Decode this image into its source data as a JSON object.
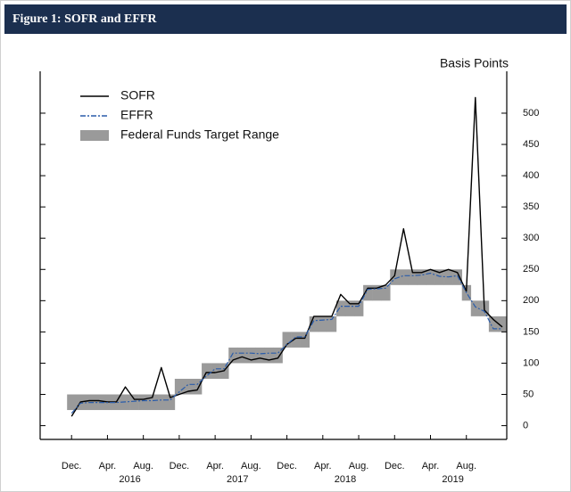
{
  "chart_data": {
    "type": "line",
    "title": "Figure 1: SOFR and EFFR",
    "y_label": "Basis Points",
    "x": [
      "2015-12",
      "2016-01",
      "2016-02",
      "2016-03",
      "2016-04",
      "2016-05",
      "2016-06",
      "2016-07",
      "2016-08",
      "2016-09",
      "2016-10",
      "2016-11",
      "2016-12",
      "2017-01",
      "2017-02",
      "2017-03",
      "2017-04",
      "2017-05",
      "2017-06",
      "2017-07",
      "2017-08",
      "2017-09",
      "2017-10",
      "2017-11",
      "2017-12",
      "2018-01",
      "2018-02",
      "2018-03",
      "2018-04",
      "2018-05",
      "2018-06",
      "2018-07",
      "2018-08",
      "2018-09",
      "2018-10",
      "2018-11",
      "2018-12",
      "2019-01",
      "2019-02",
      "2019-03",
      "2019-04",
      "2019-05",
      "2019-06",
      "2019-07",
      "2019-08",
      "2019-09",
      "2019-10",
      "2019-11",
      "2019-12"
    ],
    "series": [
      {
        "name": "SOFR",
        "color": "#000000",
        "values": [
          15,
          38,
          40,
          40,
          38,
          38,
          62,
          42,
          42,
          45,
          93,
          45,
          50,
          55,
          57,
          85,
          85,
          88,
          105,
          110,
          105,
          108,
          105,
          108,
          130,
          140,
          140,
          175,
          175,
          175,
          210,
          195,
          195,
          220,
          220,
          225,
          240,
          315,
          245,
          245,
          250,
          245,
          250,
          245,
          215,
          525,
          185,
          170,
          158
        ]
      },
      {
        "name": "EFFR",
        "color": "#2a5caa",
        "values": [
          20,
          36,
          37,
          37,
          37,
          37,
          38,
          39,
          40,
          40,
          41,
          41,
          54,
          66,
          66,
          79,
          91,
          91,
          116,
          116,
          116,
          115,
          116,
          116,
          130,
          142,
          142,
          168,
          169,
          170,
          191,
          191,
          191,
          218,
          219,
          220,
          235,
          240,
          240,
          241,
          244,
          239,
          238,
          240,
          213,
          190,
          183,
          155,
          155
        ]
      }
    ],
    "range": {
      "name": "Federal Funds Target Range",
      "color": "#9a9a9a",
      "lower": [
        25,
        25,
        25,
        25,
        25,
        25,
        25,
        25,
        25,
        25,
        25,
        25,
        50,
        50,
        50,
        75,
        75,
        75,
        100,
        100,
        100,
        100,
        100,
        100,
        125,
        125,
        125,
        150,
        150,
        150,
        175,
        175,
        175,
        200,
        200,
        200,
        225,
        225,
        225,
        225,
        225,
        225,
        225,
        225,
        200,
        175,
        175,
        150,
        150
      ],
      "upper": [
        50,
        50,
        50,
        50,
        50,
        50,
        50,
        50,
        50,
        50,
        50,
        50,
        75,
        75,
        75,
        100,
        100,
        100,
        125,
        125,
        125,
        125,
        125,
        125,
        150,
        150,
        150,
        175,
        175,
        175,
        200,
        200,
        200,
        225,
        225,
        225,
        250,
        250,
        250,
        250,
        250,
        250,
        250,
        250,
        225,
        200,
        200,
        175,
        175
      ]
    },
    "xlim": [
      "2015-09",
      "2020-01"
    ],
    "xticks": [
      {
        "value": "2015-12",
        "label": "Dec."
      },
      {
        "value": "2016-04",
        "label": "Apr."
      },
      {
        "value": "2016-08",
        "label": "Aug."
      },
      {
        "value": "2016-12",
        "label": "Dec."
      },
      {
        "value": "2017-04",
        "label": "Apr."
      },
      {
        "value": "2017-08",
        "label": "Aug."
      },
      {
        "value": "2017-12",
        "label": "Dec."
      },
      {
        "value": "2018-04",
        "label": "Apr."
      },
      {
        "value": "2018-08",
        "label": "Aug."
      },
      {
        "value": "2018-12",
        "label": "Dec."
      },
      {
        "value": "2019-04",
        "label": "Apr."
      },
      {
        "value": "2019-08",
        "label": "Aug."
      }
    ],
    "year_labels": [
      "2016",
      "2017",
      "2018",
      "2019"
    ],
    "ylim": [
      -22,
      567
    ],
    "yticks": [
      0,
      50,
      100,
      150,
      200,
      250,
      300,
      350,
      400,
      450,
      500
    ],
    "legend": "upper left"
  }
}
